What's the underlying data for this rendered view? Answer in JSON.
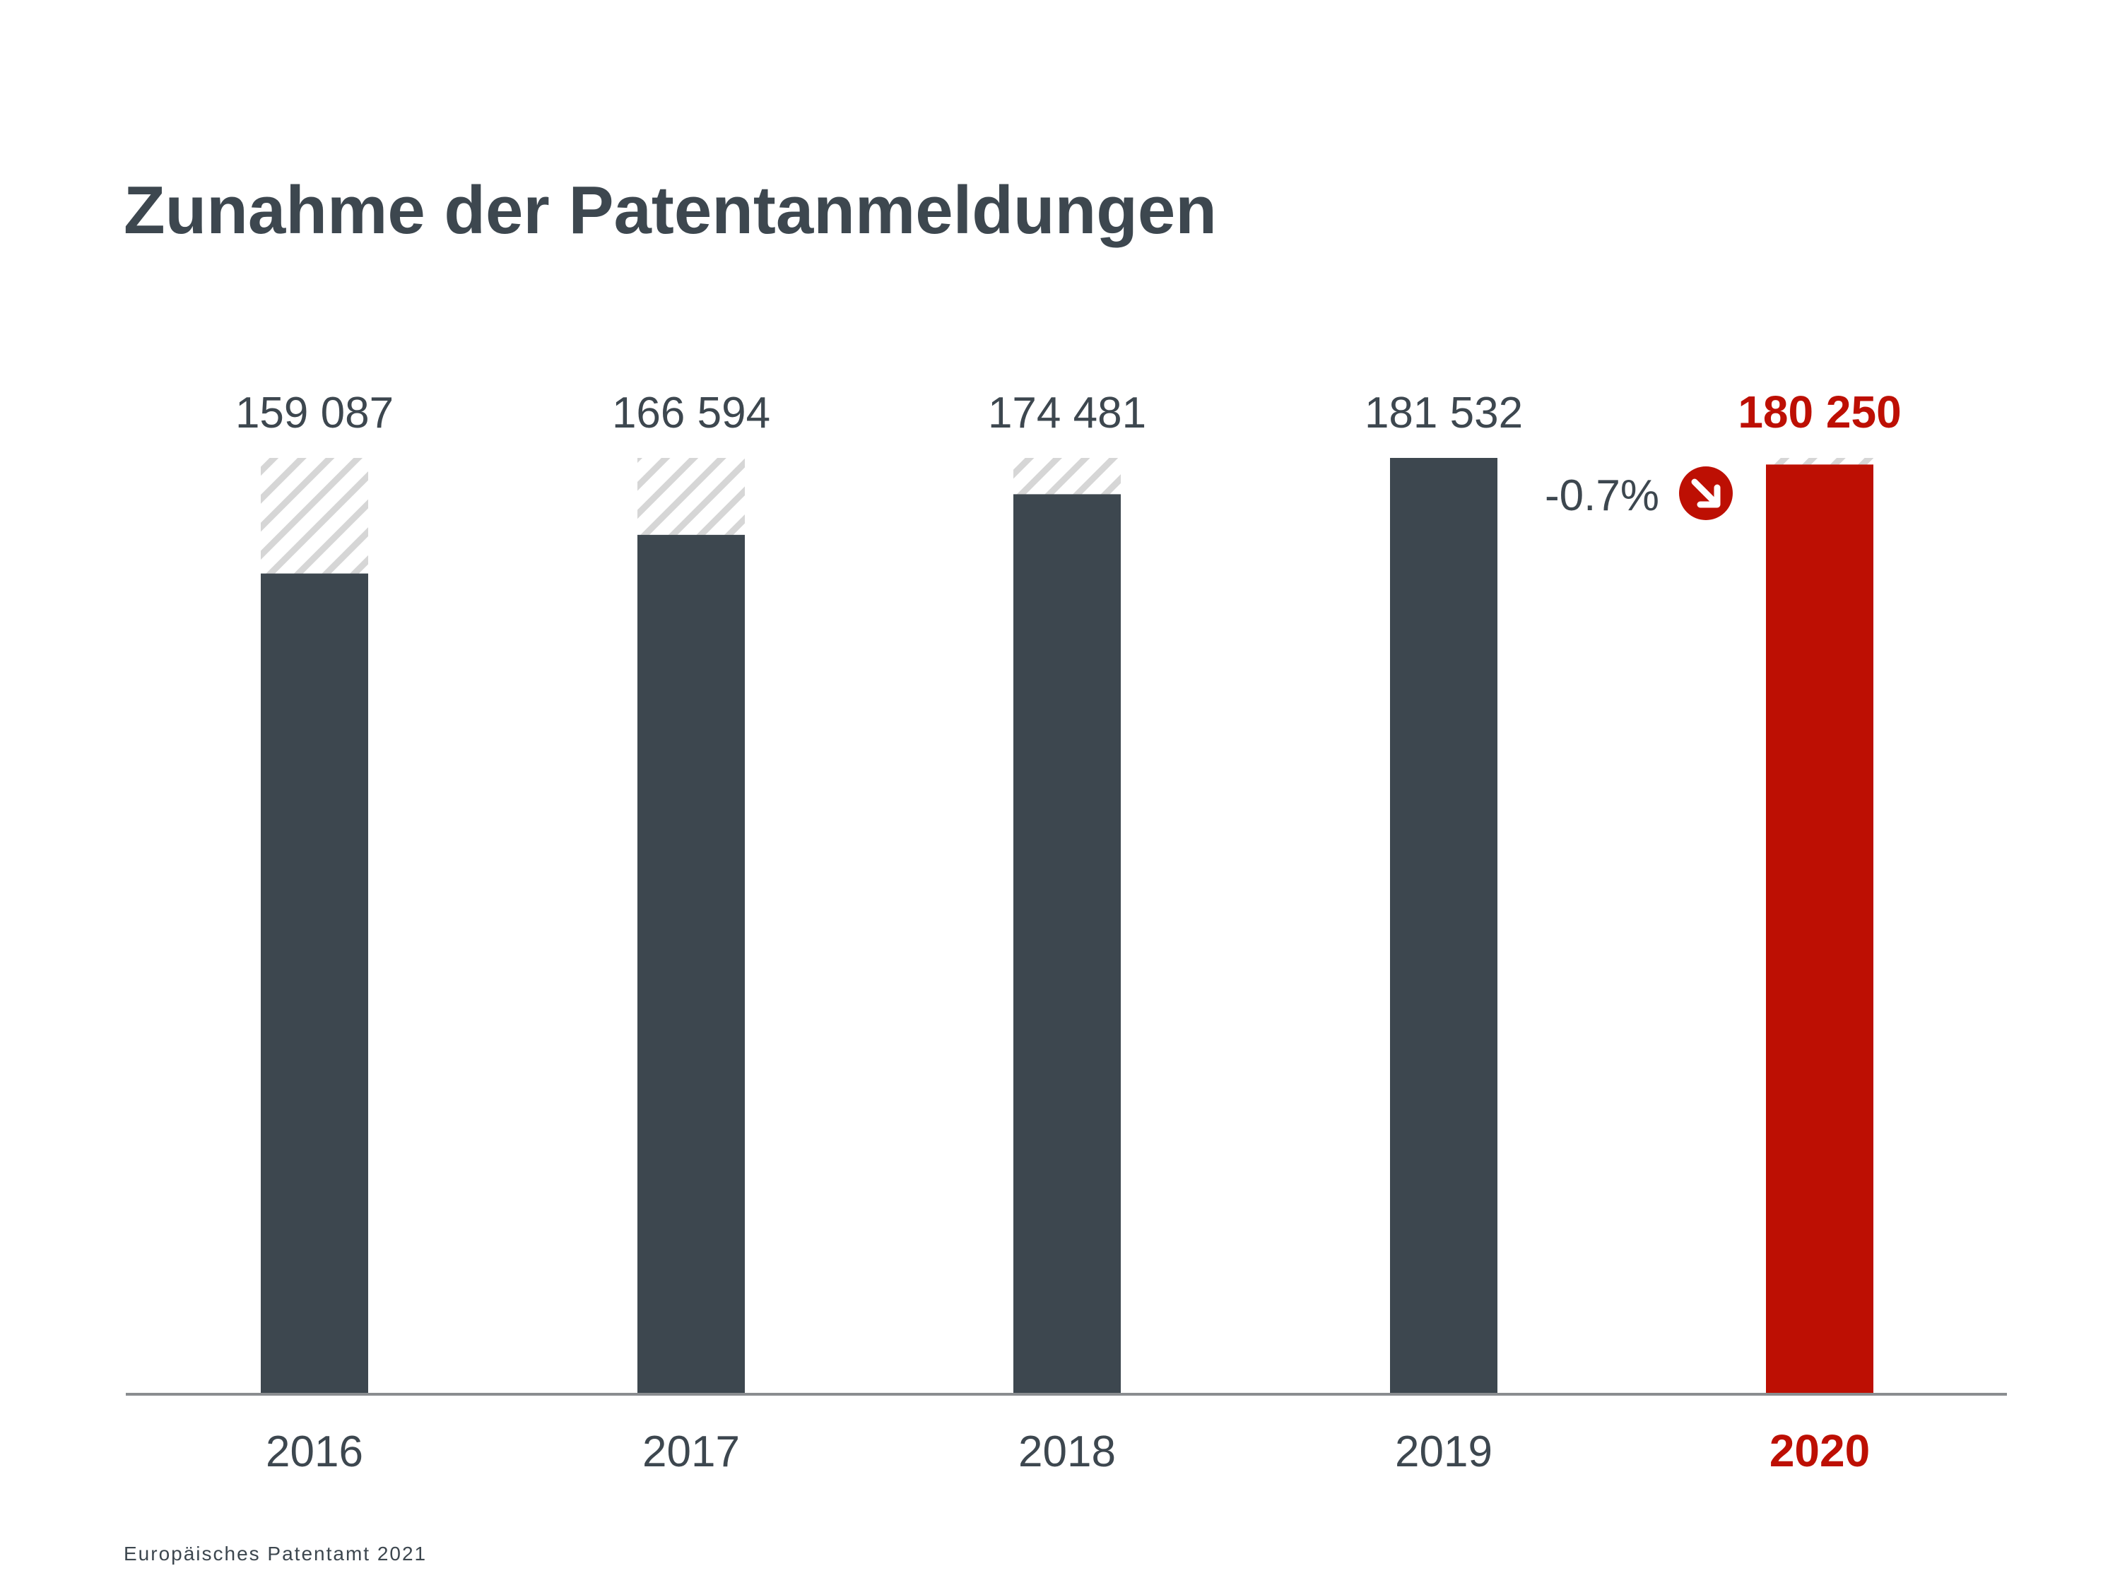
{
  "header": {
    "title": "Zunahme der Patentanmeldungen"
  },
  "chart_data": {
    "type": "bar",
    "title": "Zunahme der Patentanmeldungen",
    "categories": [
      "2016",
      "2017",
      "2018",
      "2019",
      "2020"
    ],
    "values": [
      159087,
      166594,
      174481,
      181532,
      180250
    ],
    "value_labels": [
      "159 087",
      "166 594",
      "174 481",
      "181 532",
      "180 250"
    ],
    "ylim": [
      0,
      181532
    ],
    "highlight_category": "2020",
    "annotation": {
      "text": "-0.7%",
      "icon": "arrow-down-right-icon"
    },
    "colors": {
      "bar": "#3d474f",
      "highlight": "#bd0f03",
      "hatch": "#d6d6d6",
      "axis": "#8a8d90",
      "text": "#3d474f"
    },
    "grid": false,
    "legend": "none"
  },
  "footer": {
    "source": "Europäisches Patentamt 2021"
  }
}
